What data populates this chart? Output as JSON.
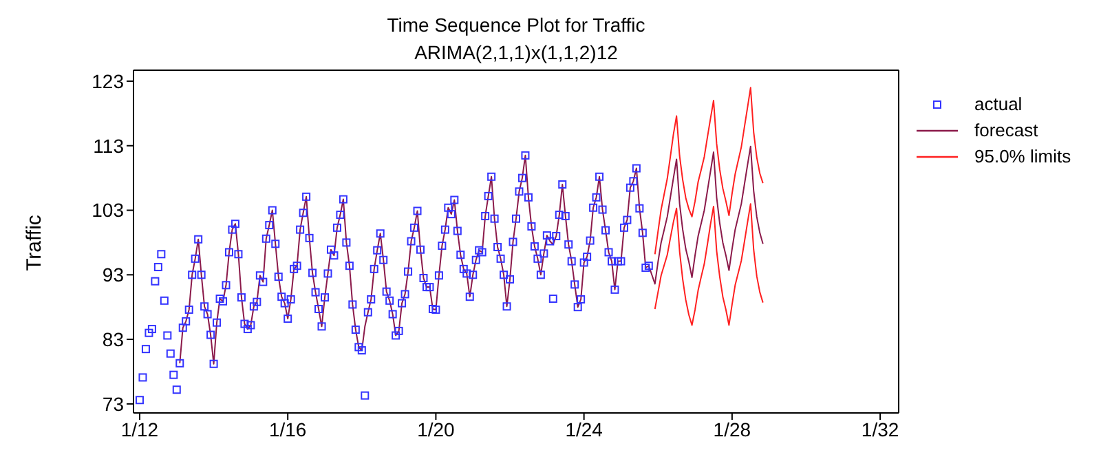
{
  "chart_data": {
    "type": "line",
    "title": "Time Sequence Plot for Traffic",
    "subtitle": "ARIMA(2,1,1)x(1,1,2)12",
    "ylabel": "Traffic",
    "xlim": [
      "2011-11",
      "2032-07"
    ],
    "ylim": [
      71.6,
      124.7
    ],
    "xticks": [
      {
        "value": "2012-01",
        "label": "1/12"
      },
      {
        "value": "2016-01",
        "label": "1/16"
      },
      {
        "value": "2020-01",
        "label": "1/20"
      },
      {
        "value": "2024-01",
        "label": "1/24"
      },
      {
        "value": "2028-01",
        "label": "1/28"
      },
      {
        "value": "2032-01",
        "label": "1/32"
      }
    ],
    "yticks": [
      73,
      83,
      93,
      103,
      113,
      123
    ],
    "legend": "right",
    "line_style": "solid",
    "series": [
      {
        "name": "actual",
        "type": "scatter",
        "marker": "square",
        "color": "#3333ff",
        "x": [
          "2012-01",
          "2012-02",
          "2012-03",
          "2012-04",
          "2012-05",
          "2012-06",
          "2012-07",
          "2012-08",
          "2012-09",
          "2012-10",
          "2012-11",
          "2012-12",
          "2013-01",
          "2013-02",
          "2013-03",
          "2013-04",
          "2013-05",
          "2013-06",
          "2013-07",
          "2013-08",
          "2013-09",
          "2013-10",
          "2013-11",
          "2013-12",
          "2014-01",
          "2014-02",
          "2014-03",
          "2014-04",
          "2014-05",
          "2014-06",
          "2014-07",
          "2014-08",
          "2014-09",
          "2014-10",
          "2014-11",
          "2014-12",
          "2015-01",
          "2015-02",
          "2015-03",
          "2015-04",
          "2015-05",
          "2015-06",
          "2015-07",
          "2015-08",
          "2015-09",
          "2015-10",
          "2015-11",
          "2015-12",
          "2016-01",
          "2016-02",
          "2016-03",
          "2016-04",
          "2016-05",
          "2016-06",
          "2016-07",
          "2016-08",
          "2016-09",
          "2016-10",
          "2016-11",
          "2016-12",
          "2017-01",
          "2017-02",
          "2017-03",
          "2017-04",
          "2017-05",
          "2017-06",
          "2017-07",
          "2017-08",
          "2017-09",
          "2017-10",
          "2017-11",
          "2017-12",
          "2018-01",
          "2018-02",
          "2018-03",
          "2018-04",
          "2018-05",
          "2018-06",
          "2018-07",
          "2018-08",
          "2018-09",
          "2018-10",
          "2018-11",
          "2018-12",
          "2019-01",
          "2019-02",
          "2019-03",
          "2019-04",
          "2019-05",
          "2019-06",
          "2019-07",
          "2019-08",
          "2019-09",
          "2019-10",
          "2019-11",
          "2019-12",
          "2020-01",
          "2020-02",
          "2020-03",
          "2020-04",
          "2020-05",
          "2020-06",
          "2020-07",
          "2020-08",
          "2020-09",
          "2020-10",
          "2020-11",
          "2020-12",
          "2021-01",
          "2021-02",
          "2021-03",
          "2021-04",
          "2021-05",
          "2021-06",
          "2021-07",
          "2021-08",
          "2021-09",
          "2021-10",
          "2021-11",
          "2021-12",
          "2022-01",
          "2022-02",
          "2022-03",
          "2022-04",
          "2022-05",
          "2022-06",
          "2022-07",
          "2022-08",
          "2022-09",
          "2022-10",
          "2022-11",
          "2022-12",
          "2023-01",
          "2023-02",
          "2023-03",
          "2023-04",
          "2023-05",
          "2023-06",
          "2023-07",
          "2023-08",
          "2023-09",
          "2023-10",
          "2023-11",
          "2023-12",
          "2024-01",
          "2024-02",
          "2024-03",
          "2024-04",
          "2024-05",
          "2024-06",
          "2024-07",
          "2024-08",
          "2024-09",
          "2024-10",
          "2024-11",
          "2024-12",
          "2025-01",
          "2025-02",
          "2025-03",
          "2025-04",
          "2025-05",
          "2025-06",
          "2025-07",
          "2025-08",
          "2025-09",
          "2025-10"
        ],
        "values": [
          73.6,
          77.1,
          81.5,
          84.0,
          84.6,
          92.0,
          94.2,
          96.2,
          89.0,
          83.6,
          80.8,
          77.5,
          75.2,
          79.3,
          84.8,
          85.8,
          87.6,
          93.0,
          95.5,
          98.5,
          93.0,
          88.1,
          86.9,
          83.7,
          79.2,
          85.6,
          89.3,
          88.9,
          91.4,
          96.5,
          100.0,
          100.9,
          96.2,
          89.5,
          85.4,
          84.6,
          85.2,
          88.1,
          88.8,
          92.9,
          91.9,
          98.6,
          100.7,
          103.0,
          97.8,
          92.7,
          89.6,
          88.6,
          86.2,
          89.2,
          93.9,
          94.4,
          100.0,
          102.6,
          105.1,
          98.7,
          93.3,
          90.3,
          87.7,
          85.0,
          89.5,
          93.2,
          96.9,
          96.0,
          100.3,
          102.3,
          104.7,
          98.0,
          94.4,
          88.4,
          84.5,
          81.8,
          81.3,
          74.3,
          87.2,
          89.2,
          93.9,
          96.8,
          99.4,
          95.3,
          90.4,
          89.0,
          86.9,
          83.6,
          84.3,
          88.6,
          90.0,
          93.5,
          98.2,
          100.3,
          102.9,
          96.9,
          92.5,
          91.1,
          91.1,
          87.7,
          87.6,
          92.9,
          97.5,
          100.0,
          103.4,
          102.4,
          104.6,
          99.8,
          96.1,
          93.9,
          93.2,
          89.6,
          93.0,
          95.3,
          96.8,
          96.5,
          102.1,
          105.2,
          108.2,
          101.7,
          97.3,
          95.5,
          93.0,
          88.1,
          92.3,
          98.1,
          101.7,
          105.9,
          108.0,
          111.5,
          105.0,
          100.5,
          97.4,
          95.5,
          93.0,
          96.3,
          99.1,
          98.2,
          89.3,
          99.0,
          102.3,
          107.0,
          102.1,
          97.7,
          95.1,
          91.5,
          88.0,
          89.2,
          94.9,
          95.8,
          98.3,
          103.4,
          105.0,
          108.2,
          103.1,
          99.9,
          96.5,
          95.1,
          90.7,
          95.1,
          95.1,
          100.3,
          101.5,
          106.5,
          107.5,
          109.5,
          103.3,
          99.5,
          94.1,
          94.4
        ]
      },
      {
        "name": "forecast",
        "color": "#8b1a4a",
        "x": [
          "2013-02",
          "2013-03",
          "2013-04",
          "2013-05",
          "2013-06",
          "2013-07",
          "2013-08",
          "2013-09",
          "2013-10",
          "2013-11",
          "2013-12",
          "2014-01",
          "2014-02",
          "2014-03",
          "2014-04",
          "2014-05",
          "2014-06",
          "2014-07",
          "2014-08",
          "2014-09",
          "2014-10",
          "2014-11",
          "2014-12",
          "2015-01",
          "2015-02",
          "2015-03",
          "2015-04",
          "2015-05",
          "2015-06",
          "2015-07",
          "2015-08",
          "2015-09",
          "2015-10",
          "2015-11",
          "2015-12",
          "2016-01",
          "2016-02",
          "2016-03",
          "2016-04",
          "2016-05",
          "2016-06",
          "2016-07",
          "2016-08",
          "2016-09",
          "2016-10",
          "2016-11",
          "2016-12",
          "2017-01",
          "2017-02",
          "2017-03",
          "2017-04",
          "2017-05",
          "2017-06",
          "2017-07",
          "2017-08",
          "2017-09",
          "2017-10",
          "2017-11",
          "2017-12",
          "2018-01",
          "2018-02",
          "2018-03",
          "2018-04",
          "2018-05",
          "2018-06",
          "2018-07",
          "2018-08",
          "2018-09",
          "2018-10",
          "2018-11",
          "2018-12",
          "2019-01",
          "2019-02",
          "2019-03",
          "2019-04",
          "2019-05",
          "2019-06",
          "2019-07",
          "2019-08",
          "2019-09",
          "2019-10",
          "2019-11",
          "2019-12",
          "2020-01",
          "2020-02",
          "2020-03",
          "2020-04",
          "2020-05",
          "2020-06",
          "2020-07",
          "2020-08",
          "2020-09",
          "2020-10",
          "2020-11",
          "2020-12",
          "2021-01",
          "2021-02",
          "2021-03",
          "2021-04",
          "2021-05",
          "2021-06",
          "2021-07",
          "2021-08",
          "2021-09",
          "2021-10",
          "2021-11",
          "2021-12",
          "2022-01",
          "2022-02",
          "2022-03",
          "2022-04",
          "2022-05",
          "2022-06",
          "2022-07",
          "2022-08",
          "2022-09",
          "2022-10",
          "2022-11",
          "2022-12",
          "2023-01",
          "2023-02",
          "2023-03",
          "2023-04",
          "2023-05",
          "2023-06",
          "2023-07",
          "2023-08",
          "2023-09",
          "2023-10",
          "2023-11",
          "2023-12",
          "2024-01",
          "2024-02",
          "2024-03",
          "2024-04",
          "2024-05",
          "2024-06",
          "2024-07",
          "2024-08",
          "2024-09",
          "2024-10",
          "2024-11",
          "2024-12",
          "2025-01",
          "2025-02",
          "2025-03",
          "2025-04",
          "2025-05",
          "2025-06",
          "2025-07",
          "2025-08",
          "2025-09",
          "2025-10",
          "2025-11",
          "2025-12",
          "2026-01",
          "2026-02",
          "2026-03",
          "2026-04",
          "2026-05",
          "2026-06",
          "2026-07",
          "2026-08",
          "2026-09",
          "2026-10",
          "2026-11",
          "2026-12",
          "2027-01",
          "2027-02",
          "2027-03",
          "2027-04",
          "2027-05",
          "2027-06",
          "2027-07",
          "2027-08",
          "2027-09",
          "2027-10",
          "2027-11",
          "2027-12",
          "2028-01",
          "2028-02",
          "2028-03",
          "2028-04",
          "2028-05",
          "2028-06",
          "2028-07",
          "2028-08",
          "2028-09",
          "2028-10",
          "2028-11"
        ],
        "values": [
          79.3,
          84.8,
          85.8,
          87.6,
          93.0,
          95.5,
          98.5,
          93.0,
          88.1,
          86.9,
          83.7,
          79.2,
          85.6,
          89.3,
          88.9,
          91.4,
          96.5,
          100.0,
          100.9,
          96.2,
          89.5,
          85.4,
          84.6,
          85.2,
          88.1,
          88.8,
          92.9,
          91.9,
          98.6,
          100.7,
          103.0,
          97.8,
          92.7,
          89.6,
          88.6,
          86.2,
          89.2,
          93.9,
          94.4,
          100.0,
          102.6,
          105.1,
          98.7,
          93.3,
          90.3,
          87.7,
          85.0,
          89.5,
          93.2,
          96.9,
          96.0,
          100.3,
          102.3,
          104.7,
          98.0,
          94.4,
          88.4,
          84.5,
          81.8,
          81.3,
          85.0,
          87.2,
          89.2,
          93.9,
          96.8,
          99.4,
          95.3,
          90.4,
          89.0,
          86.9,
          83.6,
          84.3,
          88.6,
          90.0,
          93.5,
          98.2,
          100.3,
          102.9,
          96.9,
          92.5,
          91.1,
          91.1,
          87.7,
          87.6,
          92.9,
          97.5,
          100.0,
          103.4,
          102.4,
          104.6,
          99.8,
          96.1,
          93.9,
          93.2,
          89.6,
          93.0,
          95.3,
          96.8,
          96.5,
          102.1,
          105.2,
          108.2,
          101.7,
          97.3,
          95.5,
          93.0,
          88.1,
          92.3,
          98.1,
          101.7,
          105.9,
          108.0,
          111.5,
          105.0,
          100.5,
          97.4,
          95.5,
          93.0,
          96.3,
          99.1,
          98.2,
          97.7,
          99.0,
          102.3,
          107.0,
          102.1,
          97.7,
          95.1,
          91.5,
          88.0,
          89.2,
          94.9,
          95.8,
          98.3,
          103.4,
          105.0,
          108.2,
          103.1,
          99.9,
          96.5,
          95.1,
          90.7,
          95.1,
          95.1,
          100.3,
          101.5,
          106.5,
          107.5,
          109.5,
          103.3,
          99.5,
          94.1,
          94.4,
          93.0,
          91.6,
          95.0,
          98.0,
          100.0,
          102.0,
          105.0,
          108.0,
          110.9,
          104.0,
          100.0,
          97.0,
          95.0,
          92.6,
          96.0,
          99.0,
          101.0,
          103.0,
          106.0,
          109.0,
          112.0,
          105.0,
          101.0,
          98.0,
          96.0,
          93.7,
          97.0,
          100.0,
          102.0,
          104.0,
          107.0,
          110.0,
          112.9,
          106.0,
          102.0,
          99.5,
          97.8
        ]
      },
      {
        "name": "95.0% limits",
        "color": "#ff2020",
        "x": [
          "2025-12",
          "2026-01",
          "2026-02",
          "2026-03",
          "2026-04",
          "2026-05",
          "2026-06",
          "2026-07",
          "2026-08",
          "2026-09",
          "2026-10",
          "2026-11",
          "2026-12",
          "2027-01",
          "2027-02",
          "2027-03",
          "2027-04",
          "2027-05",
          "2027-06",
          "2027-07",
          "2027-08",
          "2027-09",
          "2027-10",
          "2027-11",
          "2027-12",
          "2028-01",
          "2028-02",
          "2028-03",
          "2028-04",
          "2028-05",
          "2028-06",
          "2028-07",
          "2028-08",
          "2028-09",
          "2028-10",
          "2028-11"
        ],
        "values": [
          96.2,
          99.7,
          103.1,
          105.5,
          107.9,
          111.3,
          114.8,
          117.6,
          111.4,
          107.7,
          104.9,
          103.2,
          102.0,
          104.4,
          107.4,
          109.3,
          111.3,
          114.3,
          117.2,
          120.0,
          113.3,
          109.3,
          106.4,
          104.4,
          102.2,
          105.6,
          108.6,
          110.7,
          112.8,
          115.9,
          118.9,
          122.0,
          115.1,
          111.2,
          108.7,
          107.2
        ]
      },
      {
        "color": "#ff2020",
        "x": [
          "2025-12",
          "2026-01",
          "2026-02",
          "2026-03",
          "2026-04",
          "2026-05",
          "2026-06",
          "2026-07",
          "2026-08",
          "2026-09",
          "2026-10",
          "2026-11",
          "2026-12",
          "2027-01",
          "2027-02",
          "2027-03",
          "2027-04",
          "2027-05",
          "2027-06",
          "2027-07",
          "2027-08",
          "2027-09",
          "2027-10",
          "2027-11",
          "2027-12",
          "2028-01",
          "2028-02",
          "2028-03",
          "2028-04",
          "2028-05",
          "2028-06",
          "2028-07",
          "2028-08",
          "2028-09",
          "2028-10",
          "2028-11"
        ],
        "values": [
          87.7,
          90.3,
          92.9,
          94.5,
          96.1,
          98.7,
          101.2,
          103.3,
          96.6,
          92.3,
          89.1,
          86.8,
          85.2,
          87.6,
          90.6,
          92.7,
          94.7,
          97.7,
          100.8,
          103.6,
          96.7,
          92.7,
          89.6,
          87.6,
          85.2,
          88.4,
          91.4,
          93.3,
          95.2,
          98.1,
          101.1,
          104.0,
          96.9,
          92.8,
          90.3,
          88.7
        ]
      }
    ]
  }
}
